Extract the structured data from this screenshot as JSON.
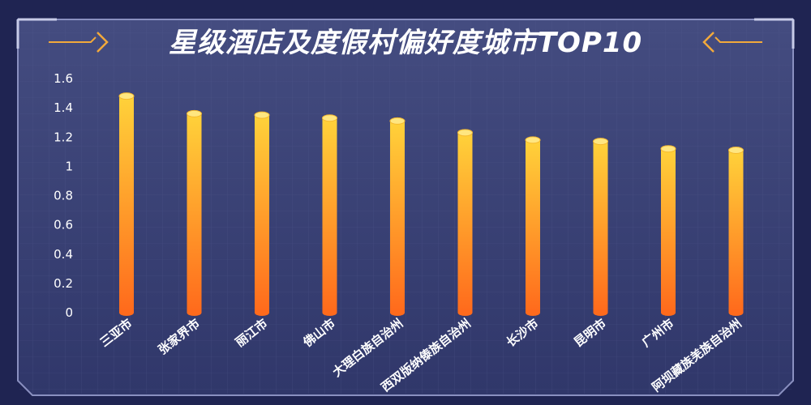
{
  "colors": {
    "background": "#3b4373",
    "grid": "#5a6294",
    "frame": "#8a90c0",
    "accent": "#f2a93b",
    "bar_top": "#ffd23a",
    "bar_bottom": "#ff6a1c"
  },
  "chart_data": {
    "type": "bar",
    "title": "星级酒店及度假村偏好度城市TOP10",
    "xlabel": "",
    "ylabel": "",
    "ylim": [
      0,
      1.6
    ],
    "yticks": [
      "0",
      "0.2",
      "0.4",
      "0.6",
      "0.8",
      "1",
      "1.2",
      "1.4",
      "1.6"
    ],
    "grid": true,
    "categories": [
      "三亚市",
      "张家界市",
      "丽江市",
      "佛山市",
      "大理白族自治州",
      "西双版纳傣族自治州",
      "长沙市",
      "昆明市",
      "广州市",
      "阿坝藏族羌族自治州"
    ],
    "values": [
      1.48,
      1.36,
      1.35,
      1.33,
      1.31,
      1.23,
      1.18,
      1.17,
      1.12,
      1.11
    ]
  }
}
